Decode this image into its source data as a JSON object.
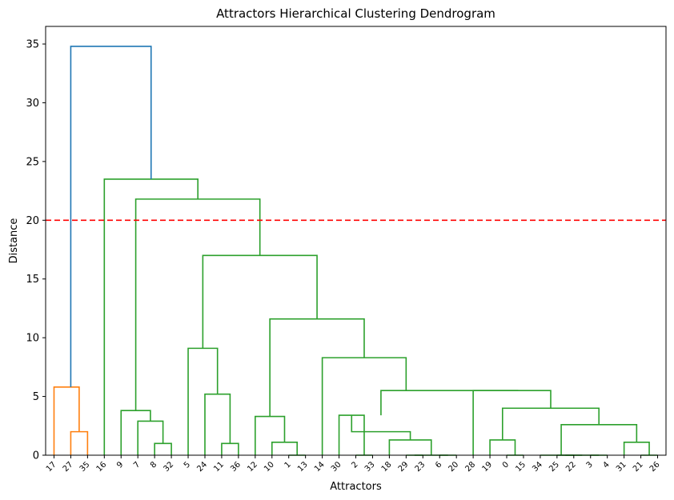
{
  "chart_data": {
    "type": "dendrogram",
    "title": "Attractors Hierarchical Clustering Dendrogram",
    "xlabel": "Attractors",
    "ylabel": "Distance",
    "ylim": [
      0,
      36.5
    ],
    "yticks": [
      0,
      5,
      10,
      15,
      20,
      25,
      30,
      35
    ],
    "grid": false,
    "leaves": [
      "17",
      "27",
      "35",
      "16",
      "9",
      "7",
      "8",
      "32",
      "5",
      "24",
      "11",
      "36",
      "12",
      "10",
      "1",
      "13",
      "14",
      "30",
      "2",
      "33",
      "18",
      "29",
      "23",
      "6",
      "20",
      "28",
      "19",
      "0",
      "15",
      "34",
      "25",
      "22",
      "3",
      "4",
      "31",
      "21",
      "26"
    ],
    "threshold": {
      "value": 20,
      "color": "#ff0000",
      "style": "dashed"
    },
    "colors": {
      "orange": "#ff7f0e",
      "green": "#2ca02c",
      "blue": "#1f77b4"
    },
    "merges": [
      {
        "left": "L0",
        "right": "c_27_35",
        "height": 5.8,
        "color": "orange"
      },
      {
        "left": "L1",
        "right": "L2",
        "height": 2.0,
        "color": "orange",
        "id": "c_27_35"
      },
      {
        "left": "c_orange",
        "right": "c_green",
        "height": 34.8,
        "color": "blue"
      }
    ],
    "links": [
      {
        "a": [
          0,
          0.0
        ],
        "b": [
          1.5,
          2.0
        ],
        "h": 5.8,
        "color": "orange"
      },
      {
        "a": [
          1,
          0.0
        ],
        "b": [
          2,
          0.0
        ],
        "h": 2.0,
        "color": "orange"
      },
      {
        "a": [
          6,
          0.0
        ],
        "b": [
          7,
          0.0
        ],
        "h": 1.0,
        "color": "green"
      },
      {
        "a": [
          5,
          0.0
        ],
        "b": [
          6.5,
          1.0
        ],
        "h": 2.9,
        "color": "green"
      },
      {
        "a": [
          4,
          0.0
        ],
        "b": [
          5.75,
          2.9
        ],
        "h": 3.8,
        "color": "green"
      },
      {
        "a": [
          10,
          0.0
        ],
        "b": [
          11,
          0.0
        ],
        "h": 1.0,
        "color": "green"
      },
      {
        "a": [
          9,
          0.0
        ],
        "b": [
          10.5,
          1.0
        ],
        "h": 5.2,
        "color": "green"
      },
      {
        "a": [
          8,
          0.0
        ],
        "b": [
          9.75,
          5.2
        ],
        "h": 9.1,
        "color": "green"
      },
      {
        "a": [
          14,
          0.0
        ],
        "b": [
          15,
          0.0
        ],
        "h": 0.0,
        "color": "green"
      },
      {
        "a": [
          13,
          0.0
        ],
        "b": [
          14.5,
          0.0
        ],
        "h": 1.1,
        "color": "green"
      },
      {
        "a": [
          12,
          0.0
        ],
        "b": [
          13.75,
          1.1
        ],
        "h": 3.3,
        "color": "green"
      },
      {
        "a": [
          18,
          0.0
        ],
        "b": [
          19,
          0.0
        ],
        "h": 0.0,
        "color": "green"
      },
      {
        "a": [
          17,
          0.0
        ],
        "b": [
          18.5,
          0.0
        ],
        "h": 3.4,
        "color": "green"
      },
      {
        "a": [
          21,
          0.0
        ],
        "b": [
          22,
          0.0
        ],
        "h": 0.0,
        "color": "green"
      },
      {
        "a": [
          23,
          0.0
        ],
        "b": [
          24,
          0.0
        ],
        "h": 0.0,
        "color": "green"
      },
      {
        "a": [
          21.5,
          0.0
        ],
        "b": [
          23.5,
          0.0
        ],
        "h": 0.0,
        "color": "green"
      },
      {
        "a": [
          20,
          0.0
        ],
        "b": [
          22.5,
          0.0
        ],
        "h": 1.3,
        "color": "green"
      },
      {
        "a": [
          17.75,
          3.4
        ],
        "b": [
          21.25,
          1.3
        ],
        "h": 2.0,
        "color": "green"
      },
      {
        "a": [
          27,
          0.0
        ],
        "b": [
          28,
          0.0
        ],
        "h": 0.0,
        "color": "green"
      },
      {
        "a": [
          26,
          0.0
        ],
        "b": [
          27.5,
          0.0
        ],
        "h": 1.3,
        "color": "green"
      },
      {
        "a": [
          30,
          0.0
        ],
        "b": [
          31,
          0.0
        ],
        "h": 0.0,
        "color": "green"
      },
      {
        "a": [
          32,
          0.0
        ],
        "b": [
          33,
          0.0
        ],
        "h": 0.0,
        "color": "green"
      },
      {
        "a": [
          30.5,
          0.0
        ],
        "b": [
          32.5,
          0.0
        ],
        "h": 0.0,
        "color": "green"
      },
      {
        "a": [
          29,
          0.0
        ],
        "b": [
          31.5,
          0.0
        ],
        "h": 0.0,
        "color": "green"
      },
      {
        "a": [
          35,
          0.0
        ],
        "b": [
          36,
          0.0
        ],
        "h": 0.0,
        "color": "green"
      },
      {
        "a": [
          34,
          0.0
        ],
        "b": [
          35.5,
          0.0
        ],
        "h": 1.1,
        "color": "green"
      },
      {
        "a": [
          30.25,
          0.0
        ],
        "b": [
          34.75,
          1.1
        ],
        "h": 2.6,
        "color": "green"
      },
      {
        "a": [
          26.75,
          1.3
        ],
        "b": [
          32.5,
          2.6
        ],
        "h": 4.0,
        "color": "green"
      },
      {
        "a": [
          25,
          0.0
        ],
        "b": [
          29.625,
          4.0
        ],
        "h": 5.5,
        "color": "green"
      }
    ]
  }
}
